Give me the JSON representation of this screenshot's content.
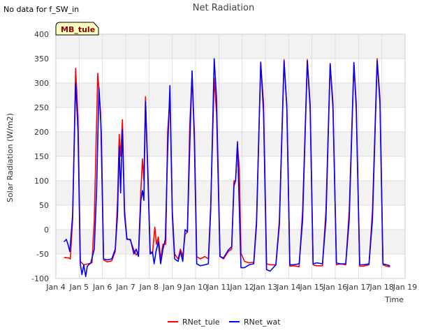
{
  "notice": "No data for f_SW_in",
  "chart_data": {
    "type": "line",
    "title": "Net Radiation",
    "xlabel": "Time",
    "ylabel": "Solar Radiation (W/m2)",
    "station_label": "MB_tule",
    "ylim": [
      -100,
      400
    ],
    "xlim": [
      4,
      19
    ],
    "y_ticks": [
      -100,
      -50,
      0,
      50,
      100,
      150,
      200,
      250,
      300,
      350,
      400
    ],
    "x_ticks": [
      {
        "value": 4,
        "label": "Jan 4"
      },
      {
        "value": 5,
        "label": "Jan 5"
      },
      {
        "value": 6,
        "label": "Jan 6"
      },
      {
        "value": 7,
        "label": "Jan 7"
      },
      {
        "value": 8,
        "label": "Jan 8"
      },
      {
        "value": 9,
        "label": "Jan 9"
      },
      {
        "value": 10,
        "label": "Jan 10"
      },
      {
        "value": 11,
        "label": "Jan 11"
      },
      {
        "value": 12,
        "label": "Jan 12"
      },
      {
        "value": 13,
        "label": "Jan 13"
      },
      {
        "value": 14,
        "label": "Jan 14"
      },
      {
        "value": 15,
        "label": "Jan 15"
      },
      {
        "value": 16,
        "label": "Jan 16"
      },
      {
        "value": 17,
        "label": "Jan 17"
      },
      {
        "value": 18,
        "label": "Jan 18"
      },
      {
        "value": 19,
        "label": "Jan 19"
      }
    ],
    "series": [
      {
        "name": "RNet_tule",
        "color": "#ff0000",
        "points": [
          [
            4.35,
            -57
          ],
          [
            4.55,
            -58
          ],
          [
            4.62,
            -60
          ],
          [
            4.72,
            20
          ],
          [
            4.85,
            330
          ],
          [
            4.95,
            230
          ],
          [
            5.05,
            -65
          ],
          [
            5.2,
            -72
          ],
          [
            5.4,
            -70
          ],
          [
            5.55,
            -68
          ],
          [
            5.65,
            20
          ],
          [
            5.8,
            320
          ],
          [
            5.92,
            240
          ],
          [
            6.05,
            -62
          ],
          [
            6.2,
            -66
          ],
          [
            6.4,
            -64
          ],
          [
            6.55,
            -45
          ],
          [
            6.65,
            60
          ],
          [
            6.72,
            195
          ],
          [
            6.78,
            150
          ],
          [
            6.86,
            225
          ],
          [
            6.95,
            40
          ],
          [
            7.05,
            -18
          ],
          [
            7.2,
            -22
          ],
          [
            7.35,
            -42
          ],
          [
            7.45,
            -52
          ],
          [
            7.55,
            -45
          ],
          [
            7.65,
            80
          ],
          [
            7.72,
            145
          ],
          [
            7.78,
            100
          ],
          [
            7.85,
            272
          ],
          [
            7.95,
            120
          ],
          [
            8.05,
            -45
          ],
          [
            8.15,
            -50
          ],
          [
            8.25,
            5
          ],
          [
            8.32,
            -30
          ],
          [
            8.4,
            -15
          ],
          [
            8.5,
            -60
          ],
          [
            8.6,
            -30
          ],
          [
            8.72,
            -30
          ],
          [
            8.8,
            200
          ],
          [
            8.9,
            270
          ],
          [
            9.0,
            40
          ],
          [
            9.1,
            -50
          ],
          [
            9.25,
            -60
          ],
          [
            9.35,
            -40
          ],
          [
            9.45,
            -55
          ],
          [
            9.55,
            -10
          ],
          [
            9.65,
            -5
          ],
          [
            9.75,
            215
          ],
          [
            9.85,
            320
          ],
          [
            9.95,
            200
          ],
          [
            10.05,
            -55
          ],
          [
            10.2,
            -60
          ],
          [
            10.4,
            -55
          ],
          [
            10.55,
            -60
          ],
          [
            10.65,
            50
          ],
          [
            10.8,
            310
          ],
          [
            10.9,
            240
          ],
          [
            11.05,
            -55
          ],
          [
            11.2,
            -60
          ],
          [
            11.4,
            -45
          ],
          [
            11.55,
            -40
          ],
          [
            11.65,
            100
          ],
          [
            11.72,
            100
          ],
          [
            11.8,
            175
          ],
          [
            11.88,
            125
          ],
          [
            11.95,
            -48
          ],
          [
            12.1,
            -65
          ],
          [
            12.3,
            -68
          ],
          [
            12.5,
            -67
          ],
          [
            12.62,
            20
          ],
          [
            12.8,
            340
          ],
          [
            12.92,
            260
          ],
          [
            13.05,
            -70
          ],
          [
            13.2,
            -72
          ],
          [
            13.45,
            -72
          ],
          [
            13.6,
            20
          ],
          [
            13.8,
            348
          ],
          [
            13.92,
            250
          ],
          [
            14.05,
            -75
          ],
          [
            14.2,
            -74
          ],
          [
            14.45,
            -76
          ],
          [
            14.6,
            40
          ],
          [
            14.8,
            348
          ],
          [
            14.92,
            260
          ],
          [
            15.05,
            -72
          ],
          [
            15.2,
            -74
          ],
          [
            15.45,
            -74
          ],
          [
            15.6,
            40
          ],
          [
            15.78,
            338
          ],
          [
            15.9,
            260
          ],
          [
            16.05,
            -72
          ],
          [
            16.2,
            -70
          ],
          [
            16.45,
            -72
          ],
          [
            16.6,
            40
          ],
          [
            16.8,
            340
          ],
          [
            16.9,
            260
          ],
          [
            17.05,
            -75
          ],
          [
            17.2,
            -75
          ],
          [
            17.45,
            -72
          ],
          [
            17.6,
            40
          ],
          [
            17.8,
            350
          ],
          [
            17.92,
            270
          ],
          [
            18.05,
            -72
          ],
          [
            18.2,
            -75
          ],
          [
            18.35,
            -76
          ]
        ]
      },
      {
        "name": "RNet_wat",
        "color": "#0000ff",
        "points": [
          [
            4.35,
            -25
          ],
          [
            4.45,
            -20
          ],
          [
            4.52,
            -30
          ],
          [
            4.6,
            -45
          ],
          [
            4.72,
            30
          ],
          [
            4.85,
            300
          ],
          [
            4.95,
            200
          ],
          [
            5.05,
            -70
          ],
          [
            5.12,
            -92
          ],
          [
            5.2,
            -72
          ],
          [
            5.28,
            -96
          ],
          [
            5.35,
            -75
          ],
          [
            5.5,
            -68
          ],
          [
            5.65,
            -40
          ],
          [
            5.75,
            80
          ],
          [
            5.85,
            290
          ],
          [
            5.95,
            200
          ],
          [
            6.05,
            -60
          ],
          [
            6.2,
            -62
          ],
          [
            6.4,
            -60
          ],
          [
            6.55,
            -40
          ],
          [
            6.65,
            30
          ],
          [
            6.72,
            170
          ],
          [
            6.78,
            75
          ],
          [
            6.86,
            205
          ],
          [
            6.95,
            30
          ],
          [
            7.05,
            -20
          ],
          [
            7.2,
            -20
          ],
          [
            7.35,
            -50
          ],
          [
            7.45,
            -40
          ],
          [
            7.55,
            -55
          ],
          [
            7.65,
            60
          ],
          [
            7.72,
            80
          ],
          [
            7.78,
            60
          ],
          [
            7.85,
            262
          ],
          [
            7.95,
            110
          ],
          [
            8.05,
            -50
          ],
          [
            8.15,
            -45
          ],
          [
            8.22,
            -70
          ],
          [
            8.3,
            -45
          ],
          [
            8.4,
            -25
          ],
          [
            8.5,
            -70
          ],
          [
            8.6,
            -40
          ],
          [
            8.7,
            -20
          ],
          [
            8.8,
            160
          ],
          [
            8.9,
            295
          ],
          [
            9.0,
            30
          ],
          [
            9.1,
            -60
          ],
          [
            9.25,
            -65
          ],
          [
            9.35,
            -45
          ],
          [
            9.45,
            -65
          ],
          [
            9.55,
            0
          ],
          [
            9.65,
            -5
          ],
          [
            9.75,
            170
          ],
          [
            9.85,
            325
          ],
          [
            9.95,
            180
          ],
          [
            10.05,
            -70
          ],
          [
            10.2,
            -74
          ],
          [
            10.4,
            -72
          ],
          [
            10.55,
            -70
          ],
          [
            10.65,
            40
          ],
          [
            10.8,
            350
          ],
          [
            10.9,
            270
          ],
          [
            11.05,
            -55
          ],
          [
            11.2,
            -58
          ],
          [
            11.4,
            -42
          ],
          [
            11.55,
            -35
          ],
          [
            11.65,
            90
          ],
          [
            11.72,
            100
          ],
          [
            11.8,
            180
          ],
          [
            11.88,
            40
          ],
          [
            11.95,
            -78
          ],
          [
            12.1,
            -78
          ],
          [
            12.3,
            -72
          ],
          [
            12.5,
            -70
          ],
          [
            12.62,
            10
          ],
          [
            12.8,
            343
          ],
          [
            12.92,
            240
          ],
          [
            13.05,
            -82
          ],
          [
            13.2,
            -85
          ],
          [
            13.45,
            -72
          ],
          [
            13.6,
            10
          ],
          [
            13.8,
            345
          ],
          [
            13.92,
            250
          ],
          [
            14.05,
            -72
          ],
          [
            14.2,
            -72
          ],
          [
            14.45,
            -70
          ],
          [
            14.6,
            20
          ],
          [
            14.8,
            345
          ],
          [
            14.92,
            250
          ],
          [
            15.05,
            -70
          ],
          [
            15.2,
            -68
          ],
          [
            15.45,
            -70
          ],
          [
            15.6,
            20
          ],
          [
            15.78,
            340
          ],
          [
            15.9,
            250
          ],
          [
            16.05,
            -68
          ],
          [
            16.2,
            -70
          ],
          [
            16.45,
            -70
          ],
          [
            16.6,
            20
          ],
          [
            16.8,
            342
          ],
          [
            16.9,
            250
          ],
          [
            17.05,
            -72
          ],
          [
            17.2,
            -72
          ],
          [
            17.45,
            -70
          ],
          [
            17.6,
            20
          ],
          [
            17.8,
            345
          ],
          [
            17.92,
            260
          ],
          [
            18.05,
            -70
          ],
          [
            18.2,
            -72
          ],
          [
            18.35,
            -74
          ]
        ]
      }
    ]
  }
}
